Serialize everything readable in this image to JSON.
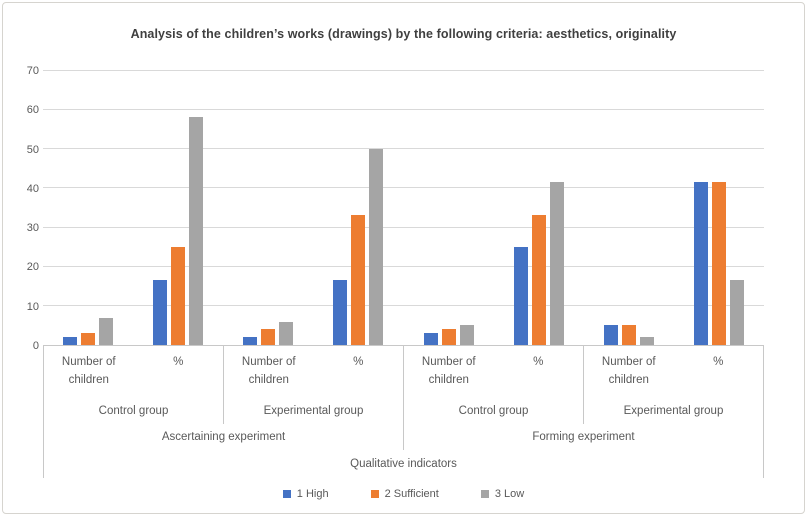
{
  "chart_data": {
    "type": "bar",
    "title": "Analysis of the children’s works (drawings) by the following criteria: aesthetics, originality",
    "xlabel": "",
    "ylabel": "",
    "ylim": [
      0,
      70
    ],
    "yticks": [
      0,
      10,
      20,
      30,
      40,
      50,
      60,
      70
    ],
    "grid": true,
    "legend_position": "bottom",
    "series_names": [
      "1 High",
      "2 Sufficient",
      "3 Low"
    ],
    "series_colors": [
      "#4472C4",
      "#ED7D31",
      "#A5A5A5"
    ],
    "axis_bottom_label": "Qualitative indicators",
    "top_level": [
      {
        "label": "Ascertaining experiment",
        "groups": [
          {
            "label": "Control group",
            "slots": [
              {
                "label": "Number of children",
                "values": [
                  2,
                  3,
                  7
                ]
              },
              {
                "label": "%",
                "values": [
                  16.7,
                  25,
                  58.3
                ]
              }
            ]
          },
          {
            "label": "Experimental group",
            "slots": [
              {
                "label": "Number of children",
                "values": [
                  2,
                  4,
                  6
                ]
              },
              {
                "label": "%",
                "values": [
                  16.7,
                  33.3,
                  50
                ]
              }
            ]
          }
        ]
      },
      {
        "label": "Forming experiment",
        "groups": [
          {
            "label": "Control group",
            "slots": [
              {
                "label": "Number of children",
                "values": [
                  3,
                  4,
                  5
                ]
              },
              {
                "label": "%",
                "values": [
                  25,
                  33.3,
                  41.7
                ]
              }
            ]
          },
          {
            "label": "Experimental group",
            "slots": [
              {
                "label": "Number of children",
                "values": [
                  5,
                  5,
                  2
                ]
              },
              {
                "label": "%",
                "values": [
                  41.7,
                  41.7,
                  16.7
                ]
              }
            ]
          }
        ]
      }
    ],
    "colors": {
      "gridline": "#D9D9D9",
      "axis_line": "#C8C8C8",
      "axis_text": "#595959",
      "title_text": "#3F3F3F"
    }
  }
}
